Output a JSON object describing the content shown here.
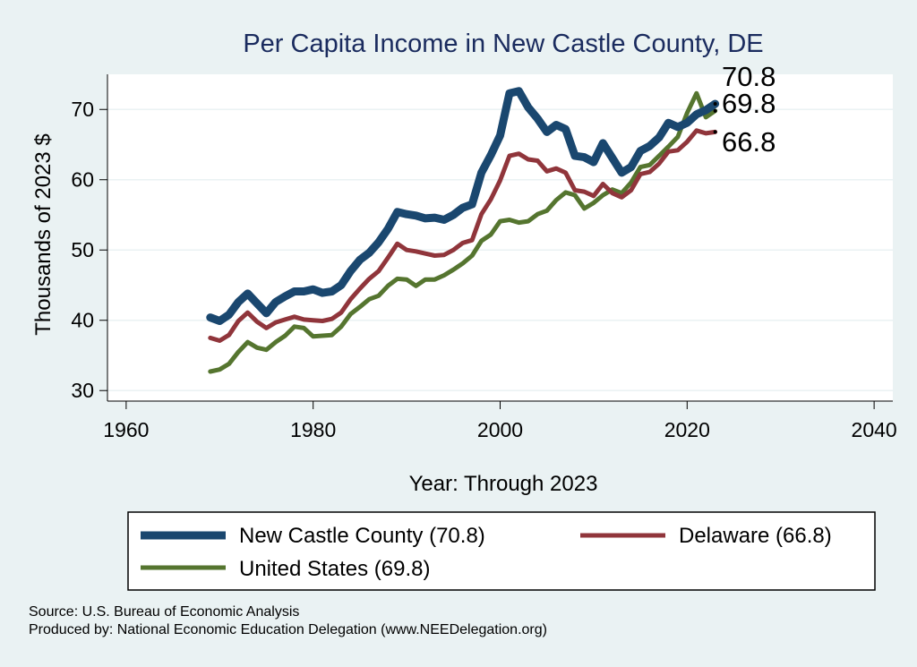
{
  "chart_data": {
    "type": "line",
    "title": "Per Capita Income in New Castle County, DE",
    "xlabel": "Year: Through 2023",
    "ylabel": "Thousands of 2023 $",
    "xlim": [
      1958,
      2042
    ],
    "ylim": [
      28.5,
      75
    ],
    "xticks": [
      1960,
      1980,
      2000,
      2020,
      2040
    ],
    "yticks": [
      30,
      40,
      50,
      60,
      70
    ],
    "grid": true,
    "legend_position": "bottom",
    "series": [
      {
        "name": "New Castle County",
        "legend_label": "New Castle County (70.8)",
        "color": "#1a476f",
        "end_label": "70.8",
        "years": [
          1969,
          1970,
          1971,
          1972,
          1973,
          1974,
          1975,
          1976,
          1977,
          1978,
          1979,
          1980,
          1981,
          1982,
          1983,
          1984,
          1985,
          1986,
          1987,
          1988,
          1989,
          1990,
          1991,
          1992,
          1993,
          1994,
          1995,
          1996,
          1997,
          1998,
          1999,
          2000,
          2001,
          2002,
          2003,
          2004,
          2005,
          2006,
          2007,
          2008,
          2009,
          2010,
          2011,
          2012,
          2013,
          2014,
          2015,
          2016,
          2017,
          2018,
          2019,
          2020,
          2021,
          2022,
          2023
        ],
        "values": [
          40.4,
          39.9,
          40.8,
          42.6,
          43.8,
          42.4,
          41.0,
          42.6,
          43.4,
          44.1,
          44.1,
          44.4,
          43.9,
          44.1,
          45.0,
          47.0,
          48.6,
          49.6,
          51.1,
          53.0,
          55.4,
          55.1,
          54.9,
          54.5,
          54.6,
          54.3,
          55.0,
          56.0,
          56.5,
          61.0,
          63.5,
          66.3,
          72.3,
          72.6,
          70.3,
          68.7,
          66.8,
          67.8,
          67.2,
          63.4,
          63.2,
          62.5,
          65.2,
          63.1,
          61.0,
          61.8,
          64.1,
          64.8,
          66.0,
          68.1,
          67.5,
          68.1,
          69.3,
          69.9,
          70.8
        ]
      },
      {
        "name": "Delaware",
        "legend_label": "Delaware (66.8)",
        "color": "#90353b",
        "end_label": "66.8",
        "years": [
          1969,
          1970,
          1971,
          1972,
          1973,
          1974,
          1975,
          1976,
          1977,
          1978,
          1979,
          1980,
          1981,
          1982,
          1983,
          1984,
          1985,
          1986,
          1987,
          1988,
          1989,
          1990,
          1991,
          1992,
          1993,
          1994,
          1995,
          1996,
          1997,
          1998,
          1999,
          2000,
          2001,
          2002,
          2003,
          2004,
          2005,
          2006,
          2007,
          2008,
          2009,
          2010,
          2011,
          2012,
          2013,
          2014,
          2015,
          2016,
          2017,
          2018,
          2019,
          2020,
          2021,
          2022,
          2023
        ],
        "values": [
          37.5,
          37.1,
          37.9,
          39.9,
          41.1,
          39.8,
          38.9,
          39.7,
          40.1,
          40.5,
          40.1,
          40.0,
          39.9,
          40.2,
          41.1,
          43.0,
          44.5,
          45.9,
          47.0,
          48.9,
          50.9,
          50.0,
          49.8,
          49.5,
          49.2,
          49.3,
          50.0,
          51.0,
          51.4,
          55.1,
          57.2,
          59.9,
          63.4,
          63.7,
          62.9,
          62.7,
          61.2,
          61.6,
          61.0,
          58.5,
          58.3,
          57.7,
          59.4,
          58.1,
          57.5,
          58.5,
          60.8,
          61.1,
          62.3,
          64.0,
          64.2,
          65.4,
          67.0,
          66.6,
          66.8
        ]
      },
      {
        "name": "United States",
        "legend_label": "United States (69.8)",
        "color": "#55752f",
        "end_label": "69.8",
        "years": [
          1969,
          1970,
          1971,
          1972,
          1973,
          1974,
          1975,
          1976,
          1977,
          1978,
          1979,
          1980,
          1981,
          1982,
          1983,
          1984,
          1985,
          1986,
          1987,
          1988,
          1989,
          1990,
          1991,
          1992,
          1993,
          1994,
          1995,
          1996,
          1997,
          1998,
          1999,
          2000,
          2001,
          2002,
          2003,
          2004,
          2005,
          2006,
          2007,
          2008,
          2009,
          2010,
          2011,
          2012,
          2013,
          2014,
          2015,
          2016,
          2017,
          2018,
          2019,
          2020,
          2021,
          2022,
          2023
        ],
        "values": [
          32.7,
          33.0,
          33.8,
          35.5,
          36.9,
          36.1,
          35.8,
          36.9,
          37.8,
          39.1,
          38.9,
          37.7,
          37.8,
          37.9,
          39.1,
          40.9,
          41.9,
          43.0,
          43.5,
          44.9,
          45.9,
          45.8,
          44.9,
          45.8,
          45.8,
          46.4,
          47.2,
          48.1,
          49.2,
          51.3,
          52.2,
          54.1,
          54.3,
          53.9,
          54.1,
          55.1,
          55.6,
          57.1,
          58.2,
          57.8,
          55.9,
          56.7,
          57.8,
          58.6,
          58.1,
          59.6,
          61.8,
          62.1,
          63.4,
          64.7,
          66.1,
          69.5,
          72.3,
          68.9,
          69.8
        ]
      }
    ],
    "footnotes": {
      "source": "Source: U.S. Bureau of Economic Analysis",
      "producer": "Produced by: National Economic Education Delegation (www.NEEDelegation.org)"
    }
  }
}
